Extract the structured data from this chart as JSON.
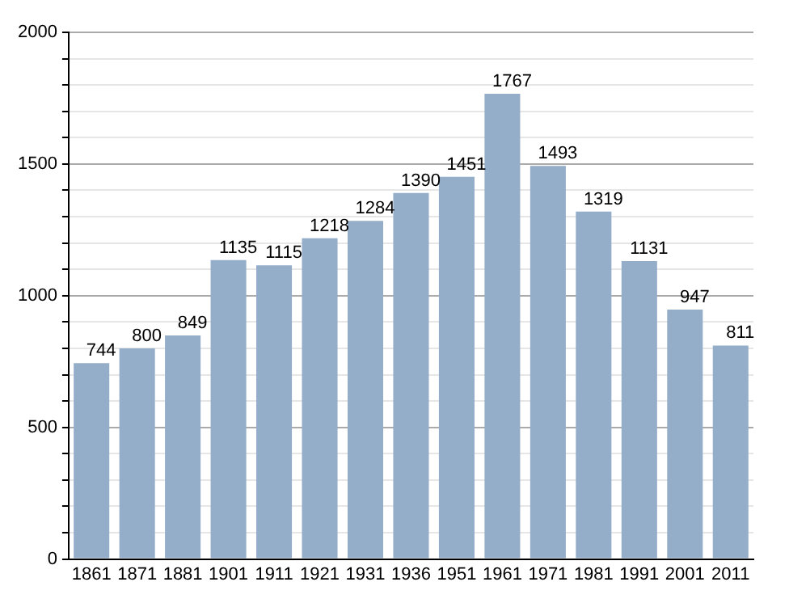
{
  "chart_data": {
    "type": "bar",
    "categories": [
      "1861",
      "1871",
      "1881",
      "1901",
      "1911",
      "1921",
      "1931",
      "1936",
      "1951",
      "1961",
      "1971",
      "1981",
      "1991",
      "2001",
      "2011"
    ],
    "values": [
      744,
      800,
      849,
      1135,
      1115,
      1218,
      1284,
      1390,
      1451,
      1767,
      1493,
      1319,
      1131,
      947,
      811
    ],
    "color": "#94adc9",
    "ylim": [
      0,
      2000
    ],
    "yticks": [
      0,
      {
        "value": 100,
        "label": null
      },
      {
        "value": 200,
        "label": null
      },
      {
        "value": 300,
        "label": null
      },
      {
        "value": 400,
        "label": null
      },
      500,
      {
        "value": 600,
        "label": null
      },
      {
        "value": 700,
        "label": null
      },
      {
        "value": 800,
        "label": null
      },
      {
        "value": 900,
        "label": null
      },
      1000,
      {
        "value": 1100,
        "label": null
      },
      {
        "value": 1200,
        "label": null
      },
      {
        "value": 1300,
        "label": null
      },
      {
        "value": 1400,
        "label": null
      },
      1500,
      {
        "value": 1600,
        "label": null
      },
      {
        "value": 1700,
        "label": null
      },
      {
        "value": 1800,
        "label": null
      },
      {
        "value": 1900,
        "label": null
      },
      2000
    ],
    "grid": "y",
    "data_labels": true
  }
}
